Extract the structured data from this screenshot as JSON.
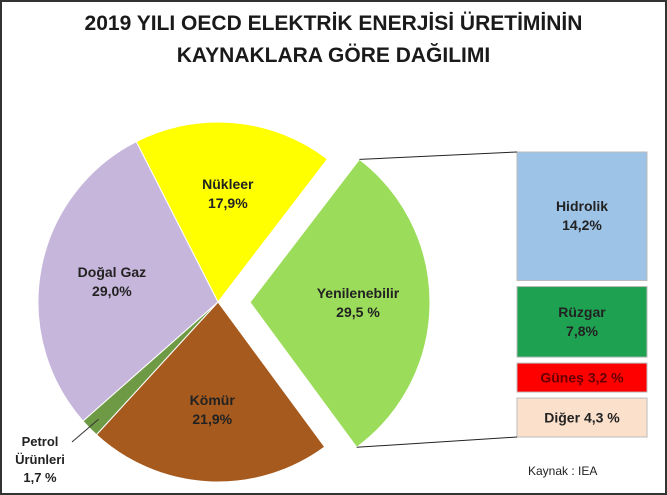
{
  "chart_data": {
    "type": "pie-of-bar",
    "title": [
      "2019 YILI OECD ELEKTRİK ENERJİSİ ÜRETİMİNİN",
      "KAYNAKLARA GÖRE DAĞILIMI"
    ],
    "categories": [
      "Nükleer",
      "Yenilenebilir",
      "Kömür",
      "Petrol Ürünleri",
      "Doğal Gaz"
    ],
    "values": [
      17.9,
      29.5,
      21.9,
      1.7,
      29.0
    ],
    "value_labels": [
      "17,9%",
      "29,5 %",
      "21,9%",
      "1,7 %",
      "29,0%"
    ],
    "colors": [
      "#ffff00",
      "#9bdc5a",
      "#a65a1e",
      "#6f9a45",
      "#c7b6dc"
    ],
    "exploded": "Yenilenebilir",
    "breakdown": {
      "categories": [
        "Hidrolik",
        "Rüzgar",
        "Güneş",
        "Diğer"
      ],
      "values": [
        14.2,
        7.8,
        3.2,
        4.3
      ],
      "value_labels": [
        "14,2%",
        "7,8%",
        "3,2 %",
        "4,3 %"
      ],
      "colors": [
        "#9dc3e6",
        "#1fa152",
        "#ff0000",
        "#fbe1cc"
      ]
    },
    "source": "Kaynak : IEA"
  }
}
